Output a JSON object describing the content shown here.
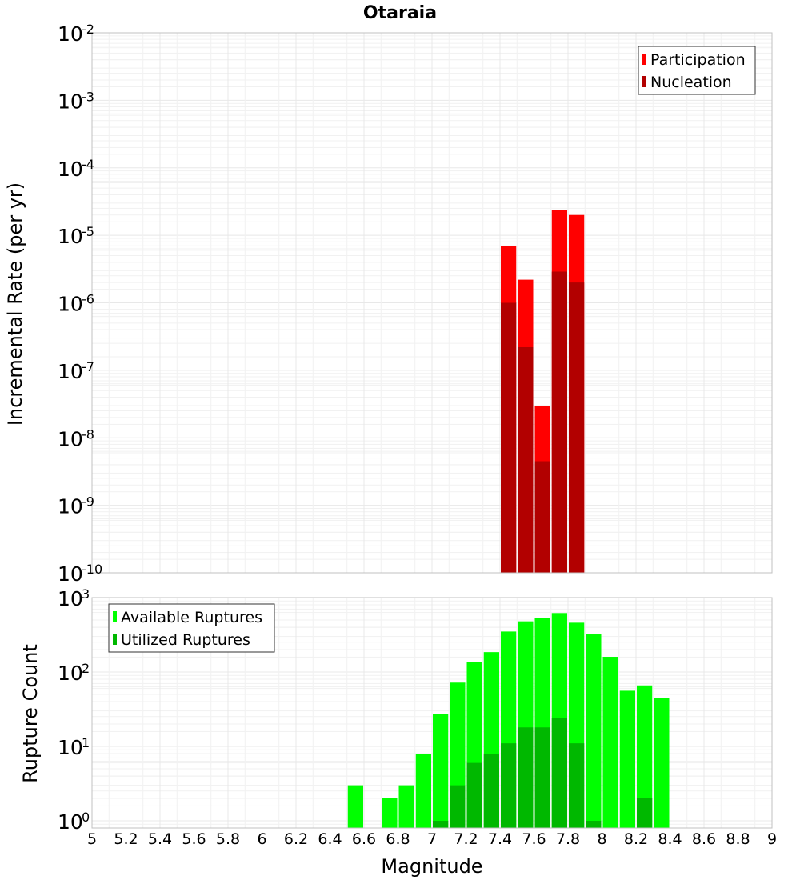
{
  "chart_data": [
    {
      "type": "bar",
      "name": "rates",
      "title": "Otaraia",
      "xlabel": "",
      "ylabel": "Incremental Rate (per yr)",
      "yscale": "log",
      "ylim": [
        1e-10,
        0.01
      ],
      "xlim": [
        5,
        9
      ],
      "ytick_exponents": [
        "-2",
        "-3",
        "-4",
        "-5",
        "-6",
        "-7",
        "-8",
        "-9",
        "-10"
      ],
      "ytick_base": "10",
      "bin_width": 0.1,
      "legend": {
        "position": "top-right",
        "entries": [
          "Participation",
          "Nucleation"
        ]
      },
      "series": [
        {
          "name": "Participation",
          "color": "#ff0000",
          "x": [
            7.45,
            7.55,
            7.65,
            7.75,
            7.85
          ],
          "values": [
            7e-06,
            2.2e-06,
            3e-08,
            2.4e-05,
            2e-05
          ]
        },
        {
          "name": "Nucleation",
          "color": "#b20000",
          "x": [
            7.45,
            7.55,
            7.65,
            7.75,
            7.85
          ],
          "values": [
            1e-06,
            2.2e-07,
            4.5e-09,
            2.9e-06,
            2e-06
          ]
        }
      ]
    },
    {
      "type": "bar",
      "name": "counts",
      "title": "",
      "xlabel": "Magnitude",
      "ylabel": "Rupture Count",
      "yscale": "log",
      "ylim": [
        0.8,
        1000
      ],
      "xlim": [
        5,
        9
      ],
      "ytick_exponents": [
        "3",
        "2",
        "1",
        "0"
      ],
      "ytick_base": "10",
      "xticks": [
        "5",
        "5.2",
        "5.4",
        "5.6",
        "5.8",
        "6",
        "6.2",
        "6.4",
        "6.6",
        "6.8",
        "7",
        "7.2",
        "7.4",
        "7.6",
        "7.8",
        "8",
        "8.2",
        "8.4",
        "8.6",
        "8.8",
        "9"
      ],
      "bin_width": 0.1,
      "legend": {
        "position": "top-left",
        "entries": [
          "Available Ruptures",
          "Utilized Ruptures"
        ]
      },
      "series": [
        {
          "name": "Available Ruptures",
          "color": "#00ff00",
          "x": [
            6.55,
            6.75,
            6.85,
            6.95,
            7.05,
            7.15,
            7.25,
            7.35,
            7.45,
            7.55,
            7.65,
            7.75,
            7.85,
            7.95,
            8.05,
            8.15,
            8.25,
            8.35
          ],
          "values": [
            3,
            2,
            3,
            8,
            27,
            72,
            135,
            185,
            350,
            480,
            530,
            620,
            460,
            320,
            160,
            56,
            66,
            45
          ]
        },
        {
          "name": "Utilized Ruptures",
          "color": "#00b800",
          "x": [
            7.05,
            7.15,
            7.25,
            7.35,
            7.45,
            7.55,
            7.65,
            7.75,
            7.85,
            7.95,
            8.25
          ],
          "values": [
            1,
            3,
            6,
            8,
            11,
            18,
            18,
            24,
            11,
            1,
            2
          ]
        }
      ]
    }
  ]
}
